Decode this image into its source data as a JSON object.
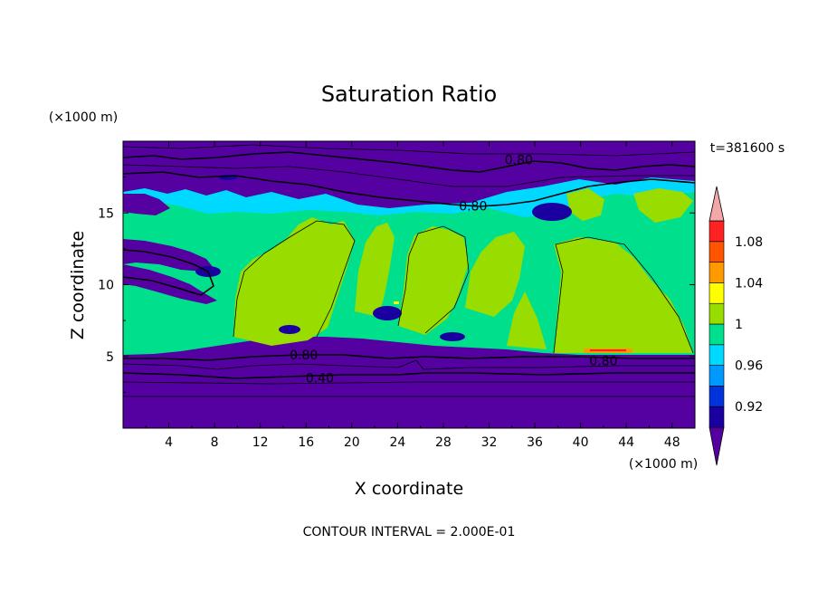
{
  "chart_data": {
    "type": "heatmap",
    "title": "Saturation Ratio",
    "xlabel": "X coordinate",
    "ylabel": "Z coordinate",
    "x_units": "(×1000 m)",
    "y_units": "(×1000 m)",
    "time_label": "t=381600 s",
    "footer": "CONTOUR INTERVAL = 2.000E-01",
    "xlim": [
      0,
      50
    ],
    "ylim": [
      0,
      20
    ],
    "x_ticks": [
      4,
      8,
      12,
      16,
      20,
      24,
      28,
      32,
      36,
      40,
      44,
      48
    ],
    "y_ticks": [
      5,
      10,
      15
    ],
    "colorbar": {
      "levels": [
        0.9,
        0.92,
        0.94,
        0.96,
        0.98,
        1.0,
        1.02,
        1.04,
        1.06,
        1.08,
        1.1
      ],
      "tick_labels": [
        "0.92",
        "0.96",
        "1",
        "1.04",
        "1.08"
      ],
      "tick_values": [
        0.92,
        0.96,
        1.0,
        1.04,
        1.08
      ],
      "colors": [
        "#5500a0",
        "#1a00a0",
        "#0033d9",
        "#0099ff",
        "#00d9ff",
        "#00e08c",
        "#99dd00",
        "#ffff00",
        "#ff9900",
        "#ff5500",
        "#ff2222",
        "#f2a8a8"
      ]
    },
    "contour_labels": [
      {
        "text": "0.80",
        "x": 34.6,
        "z": 18.7
      },
      {
        "text": "0.80",
        "x": 30.6,
        "z": 15.5
      },
      {
        "text": "0.80",
        "x": 15.8,
        "z": 5.1
      },
      {
        "text": "0.80",
        "x": 42.0,
        "z": 4.7
      },
      {
        "text": "0.40",
        "x": 17.2,
        "z": 3.5
      }
    ]
  }
}
